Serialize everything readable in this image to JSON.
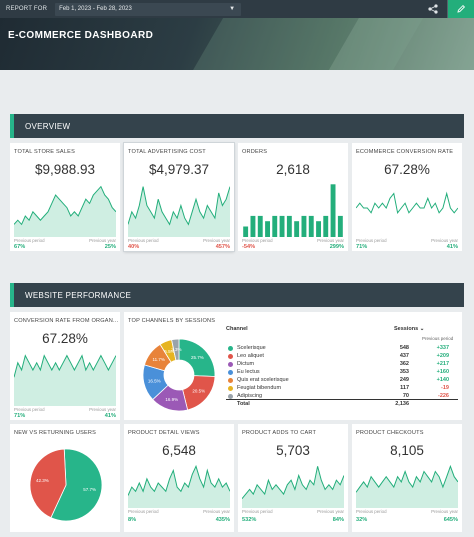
{
  "topbar": {
    "report_for_label": "REPORT FOR",
    "date_range": "Feb 1, 2023 - Feb 28, 2023"
  },
  "dashboard": {
    "title": "E-COMMERCE DASHBOARD"
  },
  "sections": {
    "overview": "OVERVIEW",
    "website_performance": "WEBSITE PERFORMANCE"
  },
  "labels": {
    "previous_period": "Previous period",
    "previous_year": "Previous year"
  },
  "colors": {
    "accent": "#23ae7b",
    "spark_fill": "#cfeee2",
    "negative": "#e0554a"
  },
  "cards": {
    "store_sales": {
      "title": "TOTAL STORE SALES",
      "value": "$9,988.93",
      "prev_period": "67%",
      "prev_year": "25%",
      "pp_dir": "pos",
      "py_dir": "pos",
      "series": [
        3,
        4,
        3,
        5,
        4,
        6,
        5,
        4,
        5,
        6,
        8,
        10,
        9,
        8,
        7,
        5,
        6,
        5,
        7,
        9,
        8,
        10,
        11,
        12,
        10,
        9,
        7,
        6
      ]
    },
    "ad_cost": {
      "title": "TOTAL ADVERTISING COST",
      "value": "$4,979.37",
      "prev_period": "40%",
      "prev_year": "457%",
      "pp_dir": "neg",
      "py_dir": "neg",
      "series": [
        2,
        4,
        3,
        5,
        8,
        5,
        4,
        3,
        6,
        4,
        3,
        2,
        4,
        3,
        5,
        3,
        2,
        4,
        6,
        4,
        3,
        5,
        4,
        3,
        7,
        5,
        6,
        8
      ]
    },
    "orders": {
      "title": "ORDERS",
      "value": "2,618",
      "prev_period": "-54%",
      "prev_year": "299%",
      "pp_dir": "neg",
      "py_dir": "pos",
      "bars": [
        2,
        4,
        4,
        3,
        4,
        4,
        4,
        3,
        4,
        4,
        3,
        4,
        10,
        4
      ]
    },
    "conversion": {
      "title": "ECOMMERCE CONVERSION RATE",
      "value": "67.28%",
      "prev_period": "71%",
      "prev_year": "41%",
      "pp_dir": "pos",
      "py_dir": "pos",
      "series": [
        6,
        7,
        6,
        6,
        5,
        7,
        6,
        7,
        6,
        8,
        9,
        5,
        6,
        7,
        5,
        6,
        7,
        6,
        6,
        8,
        6,
        7,
        5,
        6,
        9,
        6,
        5,
        6
      ]
    },
    "organic_cr": {
      "title": "CONVERSION RATE FROM ORGAN...",
      "value": "67.28%",
      "prev_period": "71%",
      "prev_year": "41%",
      "pp_dir": "pos",
      "py_dir": "pos",
      "series": [
        4,
        6,
        5,
        7,
        6,
        5,
        6,
        5,
        7,
        6,
        5,
        6,
        5,
        6,
        7,
        6,
        5,
        6,
        7,
        5,
        6,
        5,
        6,
        7,
        6,
        5,
        6,
        7
      ]
    },
    "new_returning": {
      "title": "NEW VS RETURNING USERS"
    },
    "detail_views": {
      "title": "PRODUCT DETAIL VIEWS",
      "value": "6,548",
      "prev_period": "8%",
      "prev_year": "435%",
      "pp_dir": "pos",
      "py_dir": "pos",
      "series": [
        3,
        5,
        4,
        6,
        4,
        7,
        5,
        4,
        6,
        5,
        4,
        7,
        9,
        5,
        4,
        6,
        5,
        8,
        10,
        7,
        5,
        9,
        6,
        5,
        7,
        5,
        6,
        4
      ]
    },
    "adds_to_cart": {
      "title": "PRODUCT ADDS TO CART",
      "value": "5,703",
      "prev_period": "532%",
      "prev_year": "84%",
      "pp_dir": "pos",
      "py_dir": "pos",
      "series": [
        2,
        3,
        4,
        3,
        5,
        4,
        3,
        6,
        4,
        5,
        4,
        3,
        5,
        6,
        4,
        7,
        5,
        4,
        6,
        5,
        9,
        6,
        4,
        5,
        4,
        6,
        5,
        7
      ]
    },
    "checkouts": {
      "title": "PRODUCT CHECKOUTS",
      "value": "8,105",
      "prev_period": "32%",
      "prev_year": "645%",
      "pp_dir": "pos",
      "py_dir": "pos",
      "series": [
        3,
        4,
        5,
        4,
        6,
        5,
        4,
        5,
        6,
        5,
        4,
        6,
        5,
        7,
        5,
        4,
        6,
        5,
        7,
        6,
        5,
        7,
        6,
        4,
        6,
        8,
        6,
        5
      ]
    }
  },
  "channels": {
    "title": "TOP CHANNELS BY SESSIONS",
    "col_channel": "Channel",
    "col_sessions": "Sessions",
    "col_prev": "Previous period",
    "rows": [
      {
        "name": "Scelerisque",
        "sessions": "548",
        "change": "+337",
        "dir": "pos",
        "color": "#27b58a",
        "pct": "25.7%",
        "value": 25.7
      },
      {
        "name": "Leo aliquet",
        "sessions": "437",
        "change": "+209",
        "dir": "pos",
        "color": "#e0554a",
        "pct": "20.5%",
        "value": 20.5
      },
      {
        "name": "Dictum",
        "sessions": "362",
        "change": "+217",
        "dir": "pos",
        "color": "#9b59b6",
        "pct": "16.9%",
        "value": 16.9
      },
      {
        "name": "Eu lectus",
        "sessions": "353",
        "change": "+160",
        "dir": "pos",
        "color": "#4a90d9",
        "pct": "16.5%",
        "value": 16.5
      },
      {
        "name": "Quis erat scelerisque",
        "sessions": "249",
        "change": "+140",
        "dir": "pos",
        "color": "#e8833a",
        "pct": "11.7%",
        "value": 11.7
      },
      {
        "name": "Feugiat bibendum",
        "sessions": "117",
        "change": "-19",
        "dir": "neg",
        "color": "#e6b422",
        "pct": "5.5%",
        "value": 5.5
      },
      {
        "name": "Adipiscing",
        "sessions": "70",
        "change": "-226",
        "dir": "neg",
        "color": "#9aa3aa",
        "pct": "3.3%",
        "value": 3.3
      }
    ],
    "total_label": "Total",
    "total_value": "2,136"
  },
  "users_pie": {
    "slices": [
      {
        "label": "57.7%",
        "value": 57.7,
        "color": "#27b58a"
      },
      {
        "label": "42.3%",
        "value": 42.3,
        "color": "#e0554a"
      }
    ]
  }
}
